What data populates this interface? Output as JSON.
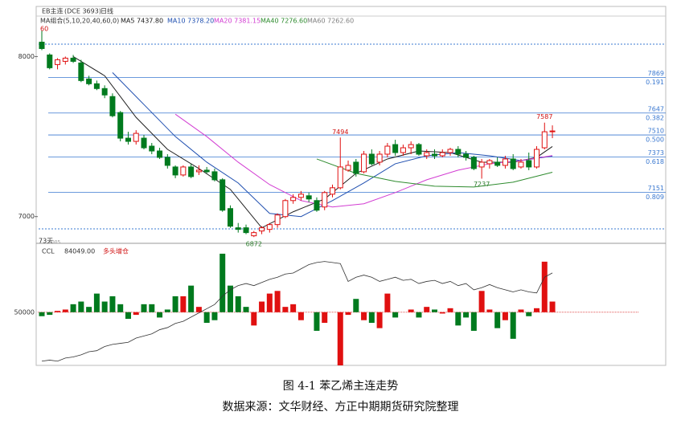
{
  "header": {
    "symbol": "EB主连",
    "exchange": "(DCE 3693)",
    "period": "日线"
  },
  "chart_data": [
    {
      "type": "candlestick",
      "legend_title": "MA组合(5,10,20,40,60,0)",
      "open": [
        8090,
        8010,
        7950,
        7970,
        7990,
        7960,
        7860,
        7830,
        7800,
        7750,
        7650,
        7490,
        7470,
        7490,
        7440,
        7410,
        7370,
        7310,
        7260,
        7310,
        7280,
        7290,
        7280,
        7230,
        7050,
        6930,
        6930,
        6880,
        6910,
        6920,
        6950,
        7000,
        7100,
        7120,
        7130,
        7100,
        7060,
        7140,
        7180,
        7290,
        7340,
        7280,
        7390,
        7340,
        7390,
        7450,
        7400,
        7430,
        7450,
        7380,
        7390,
        7380,
        7400,
        7420,
        7390,
        7370,
        7310,
        7330,
        7340,
        7320,
        7360,
        7310,
        7350,
        7310,
        7430,
        7530
      ],
      "high": [
        8160,
        8020,
        7990,
        8000,
        8010,
        7980,
        7880,
        7850,
        7820,
        7770,
        7660,
        7530,
        7540,
        7510,
        7460,
        7430,
        7390,
        7320,
        7320,
        7330,
        7320,
        7310,
        7300,
        7240,
        7070,
        6960,
        6950,
        6910,
        6940,
        6960,
        7020,
        7110,
        7140,
        7160,
        7150,
        7120,
        7160,
        7200,
        7494,
        7350,
        7360,
        7410,
        7420,
        7410,
        7460,
        7480,
        7450,
        7470,
        7460,
        7420,
        7420,
        7420,
        7430,
        7440,
        7410,
        7380,
        7360,
        7360,
        7370,
        7380,
        7390,
        7360,
        7400,
        7440,
        7587,
        7570
      ],
      "low": [
        8040,
        7920,
        7920,
        7950,
        7960,
        7840,
        7820,
        7790,
        7740,
        7620,
        7470,
        7450,
        7450,
        7420,
        7390,
        7360,
        7300,
        7240,
        7250,
        7240,
        7260,
        7270,
        7220,
        7030,
        6930,
        6900,
        6890,
        6872,
        6890,
        6900,
        6930,
        6990,
        7080,
        7100,
        7090,
        7030,
        7040,
        7120,
        7170,
        7280,
        7250,
        7270,
        7320,
        7320,
        7370,
        7380,
        7380,
        7390,
        7380,
        7360,
        7360,
        7370,
        7380,
        7370,
        7350,
        7290,
        7237,
        7300,
        7310,
        7300,
        7290,
        7300,
        7290,
        7300,
        7420,
        7490
      ],
      "close": [
        8050,
        7930,
        7980,
        7990,
        7970,
        7850,
        7830,
        7800,
        7760,
        7630,
        7490,
        7470,
        7520,
        7430,
        7410,
        7370,
        7320,
        7260,
        7310,
        7250,
        7290,
        7280,
        7230,
        7040,
        6940,
        6920,
        6900,
        6900,
        6930,
        6950,
        7010,
        7100,
        7120,
        7140,
        7110,
        7040,
        7150,
        7180,
        7310,
        7320,
        7270,
        7390,
        7330,
        7390,
        7440,
        7400,
        7430,
        7450,
        7390,
        7400,
        7380,
        7400,
        7420,
        7390,
        7370,
        7300,
        7340,
        7350,
        7320,
        7360,
        7300,
        7340,
        7310,
        7420,
        7530,
        7535
      ],
      "up_color": "#e01010",
      "down_color": "#007a1e",
      "ylim": [
        6848,
        8253
      ],
      "yticks": [
        7000,
        8000
      ],
      "ma": [
        {
          "name": "MA5",
          "label": "MA5 7437.80",
          "color": "#202020",
          "x": [
            4,
            8,
            12,
            16,
            20,
            24,
            28,
            32,
            36,
            40,
            44,
            48,
            52,
            56,
            60,
            63,
            65
          ],
          "values": [
            8000,
            7880,
            7620,
            7420,
            7300,
            7170,
            6930,
            7030,
            7110,
            7270,
            7360,
            7410,
            7400,
            7340,
            7340,
            7370,
            7438
          ]
        },
        {
          "name": "MA10",
          "label": "MA10 7378.20",
          "color": "#1f4fb0",
          "x": [
            9,
            13,
            17,
            21,
            25,
            29,
            33,
            37,
            41,
            45,
            49,
            53,
            57,
            61,
            65
          ],
          "values": [
            7900,
            7700,
            7500,
            7340,
            7210,
            7020,
            7000,
            7100,
            7210,
            7330,
            7380,
            7400,
            7380,
            7350,
            7378
          ]
        },
        {
          "name": "MA20",
          "label": "MA20 7381.15",
          "color": "#d23cd2",
          "x": [
            17,
            21,
            25,
            29,
            33,
            37,
            41,
            45,
            49,
            53,
            57,
            61,
            65
          ],
          "values": [
            7640,
            7500,
            7340,
            7200,
            7100,
            7060,
            7080,
            7150,
            7230,
            7290,
            7330,
            7350,
            7381
          ]
        },
        {
          "name": "MA40",
          "label": "MA40 7276.60",
          "color": "#2e8b2e",
          "x": [
            35,
            40,
            45,
            50,
            55,
            60,
            65
          ],
          "values": [
            7360,
            7270,
            7220,
            7190,
            7185,
            7215,
            7277
          ]
        },
        {
          "name": "MA60",
          "label": "MA60 7262.60",
          "color": "#808080"
        }
      ],
      "fib_levels": [
        {
          "value": 7869,
          "ratio": 0.191
        },
        {
          "value": 7647,
          "ratio": 0.382
        },
        {
          "value": 7510,
          "ratio": "0.500"
        },
        {
          "value": 7373,
          "ratio": 0.618
        },
        {
          "value": 7151,
          "ratio": 0.809
        }
      ],
      "fib_color": "#3a78d0",
      "annotations": [
        "60",
        "73天",
        "2005"
      ]
    },
    {
      "type": "bar",
      "title": "多头增仓",
      "ylim": [
        30000,
        75000
      ],
      "yticks": [
        50000
      ],
      "baseline": 50000,
      "y2lim": [
        40000,
        97000
      ],
      "series": [
        {
          "name": "增仓",
          "values": [
            48500,
            49000,
            50500,
            51000,
            53000,
            54000,
            52000,
            57000,
            54000,
            56000,
            53000,
            47500,
            49000,
            53000,
            53000,
            48000,
            51000,
            56000,
            56000,
            60000,
            52000,
            46000,
            47000,
            72000,
            60000,
            56000,
            52000,
            45000,
            54000,
            57000,
            58000,
            52000,
            53000,
            47000,
            50000,
            43000,
            46000,
            50000,
            30000,
            49000,
            55000,
            47000,
            46000,
            44000,
            57000,
            48000,
            50000,
            51000,
            48000,
            52000,
            51000,
            49500,
            51500,
            45000,
            48000,
            43000,
            58000,
            51000,
            44000,
            47000,
            40000,
            51000,
            48500,
            51500,
            69000,
            54000
          ]
        },
        {
          "name": "CCL",
          "axis": "y2",
          "color": "#333333",
          "values": [
            42000,
            42500,
            42000,
            43500,
            44000,
            45000,
            46500,
            47000,
            49000,
            50000,
            50500,
            51000,
            53000,
            54000,
            55000,
            57000,
            58000,
            60000,
            61000,
            63000,
            65000,
            67000,
            69000,
            73000,
            76000,
            78000,
            79000,
            78000,
            79500,
            81000,
            82000,
            83500,
            84000,
            86000,
            88000,
            89000,
            89500,
            89000,
            88500,
            80000,
            82000,
            83000,
            82000,
            80000,
            81000,
            82000,
            80500,
            81000,
            79000,
            80000,
            80500,
            79000,
            80000,
            78000,
            79000,
            76000,
            77000,
            78500,
            77000,
            76000,
            75000,
            76000,
            75000,
            74500,
            82000,
            84049
          ],
          "value_labels": [
            null,
            null,
            null,
            null,
            null,
            null,
            null,
            null,
            null,
            null,
            null,
            null,
            null,
            null,
            null,
            null,
            null,
            null,
            null,
            null,
            null,
            null,
            null,
            null,
            null,
            null,
            null,
            null,
            null,
            null,
            null,
            null,
            null,
            null,
            null,
            null,
            null,
            null,
            null,
            null,
            null,
            null,
            null,
            null,
            null,
            null,
            null,
            null,
            null,
            null,
            null,
            null,
            null,
            null,
            null,
            null,
            null,
            null,
            null,
            null,
            null,
            null,
            null,
            null,
            null,
            "84049.00"
          ]
        }
      ]
    }
  ],
  "caption": {
    "title": "图 4-1  苯乙烯主连走势",
    "source": "数据来源：文华财经、方正中期期货研究院整理"
  }
}
